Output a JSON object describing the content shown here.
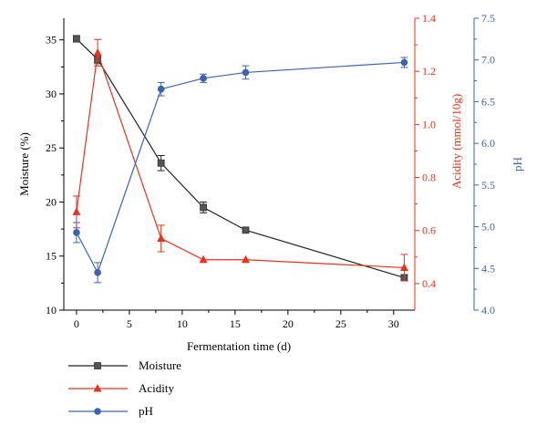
{
  "chart_data": {
    "type": "line",
    "title": "",
    "xlabel": "Fermentation time (d)",
    "xlim": [
      -1.2,
      32
    ],
    "xticks": [
      0,
      5,
      10,
      15,
      20,
      25,
      30
    ],
    "x": [
      0,
      2,
      8,
      12,
      16,
      31
    ],
    "axes": {
      "left": {
        "label": "Moisture (%)",
        "lim": [
          10,
          37
        ],
        "ticks": [
          10,
          15,
          20,
          25,
          30,
          35
        ],
        "color": "#000000"
      },
      "right1": {
        "label": "Acidity (mmol/10g)",
        "lim": [
          0.3,
          1.4
        ],
        "ticks": [
          "0.4",
          "0.6",
          "0.8",
          "1.0",
          "1.2",
          "1.4"
        ],
        "color": "#e8321e"
      },
      "right2": {
        "label": "pH",
        "lim": [
          4.0,
          7.5
        ],
        "ticks": [
          "4.0",
          "4.5",
          "5.0",
          "5.5",
          "6.0",
          "6.5",
          "7.0",
          "7.5"
        ],
        "color": "#3d63b0"
      }
    },
    "series": [
      {
        "name": "Moisture",
        "axis": "left",
        "color": "#222222",
        "marker": "square",
        "values": [
          35.1,
          33.2,
          23.6,
          19.5,
          17.4,
          13.0
        ],
        "errors": [
          0.3,
          0.4,
          0.7,
          0.5,
          0.15,
          0.25
        ]
      },
      {
        "name": "Acidity",
        "axis": "right1",
        "color": "#e8321e",
        "marker": "triangle",
        "values": [
          0.67,
          1.27,
          0.57,
          0.49,
          0.49,
          0.46
        ],
        "errors": [
          0.06,
          0.05,
          0.05,
          0.0,
          0.0,
          0.05
        ]
      },
      {
        "name": "pH",
        "axis": "right2",
        "color": "#3d63b0",
        "marker": "circle",
        "values": [
          4.93,
          4.45,
          6.65,
          6.78,
          6.85,
          6.97
        ],
        "errors": [
          0.12,
          0.12,
          0.08,
          0.05,
          0.08,
          0.06
        ]
      }
    ],
    "legend": {
      "placement": "bottom-left"
    }
  }
}
